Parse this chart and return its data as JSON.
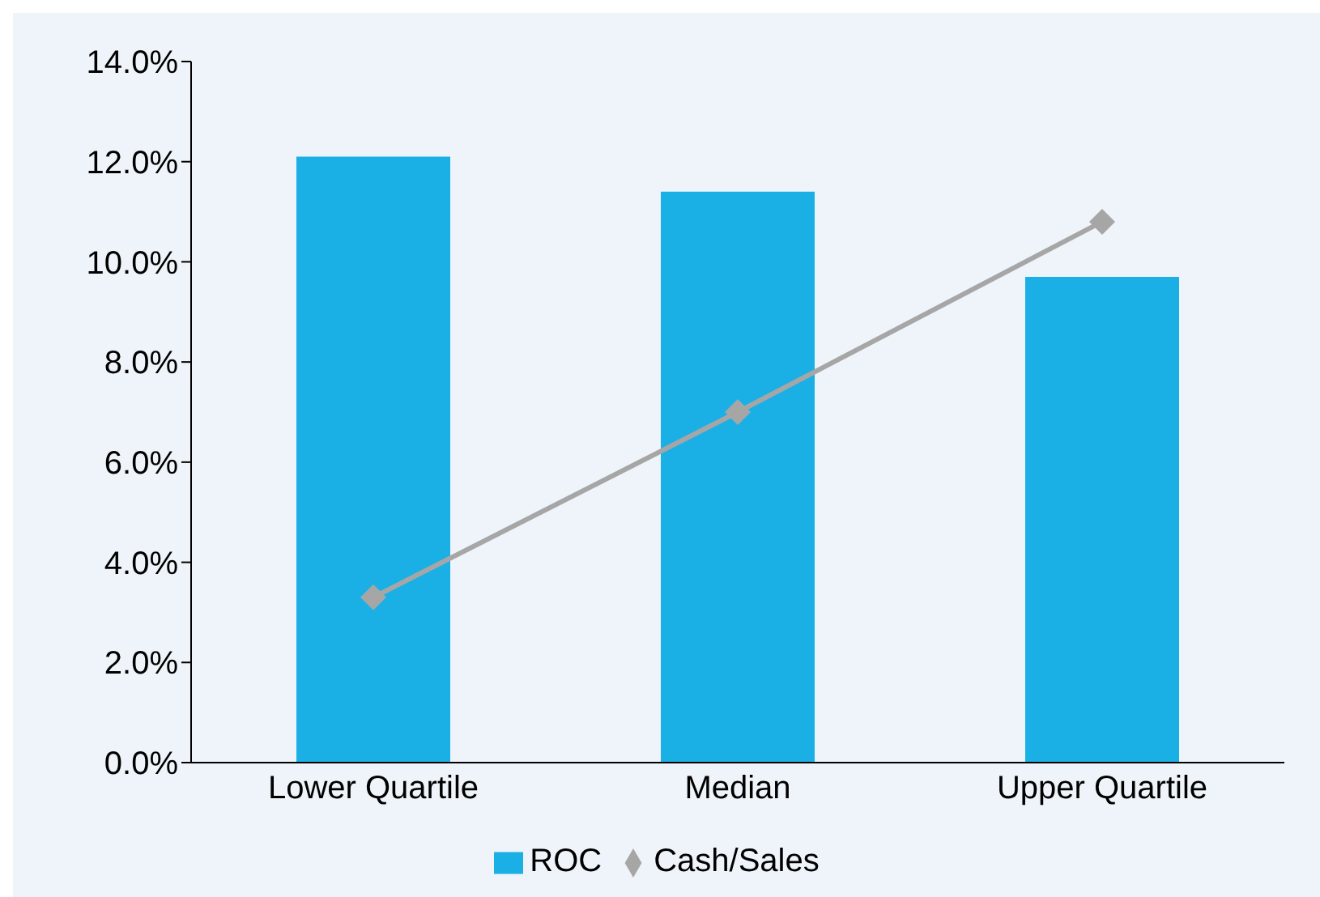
{
  "chart_data": {
    "type": "bar",
    "categories": [
      "Lower Quartile",
      "Median",
      "Upper Quartile"
    ],
    "series": [
      {
        "name": "ROC",
        "color": "#1ab0e6",
        "values": [
          12.1,
          11.4,
          9.7
        ]
      },
      {
        "name": "Cash/Sales",
        "type": "line",
        "color": "#a6a6a6",
        "values": [
          3.3,
          7.0,
          10.8
        ]
      }
    ],
    "ylim": [
      0,
      14
    ],
    "yticks": [
      {
        "value": 0,
        "label": "0.0%"
      },
      {
        "value": 2,
        "label": "2.0%"
      },
      {
        "value": 4,
        "label": "4.0%"
      },
      {
        "value": 6,
        "label": "6.0%"
      },
      {
        "value": 8,
        "label": "8.0%"
      },
      {
        "value": 10,
        "label": "10.0%"
      },
      {
        "value": 12,
        "label": "12.0%"
      },
      {
        "value": 14,
        "label": "14.0%"
      }
    ],
    "grid": false,
    "legend": "bottom",
    "marker": "diamond",
    "line_style": "solid"
  }
}
